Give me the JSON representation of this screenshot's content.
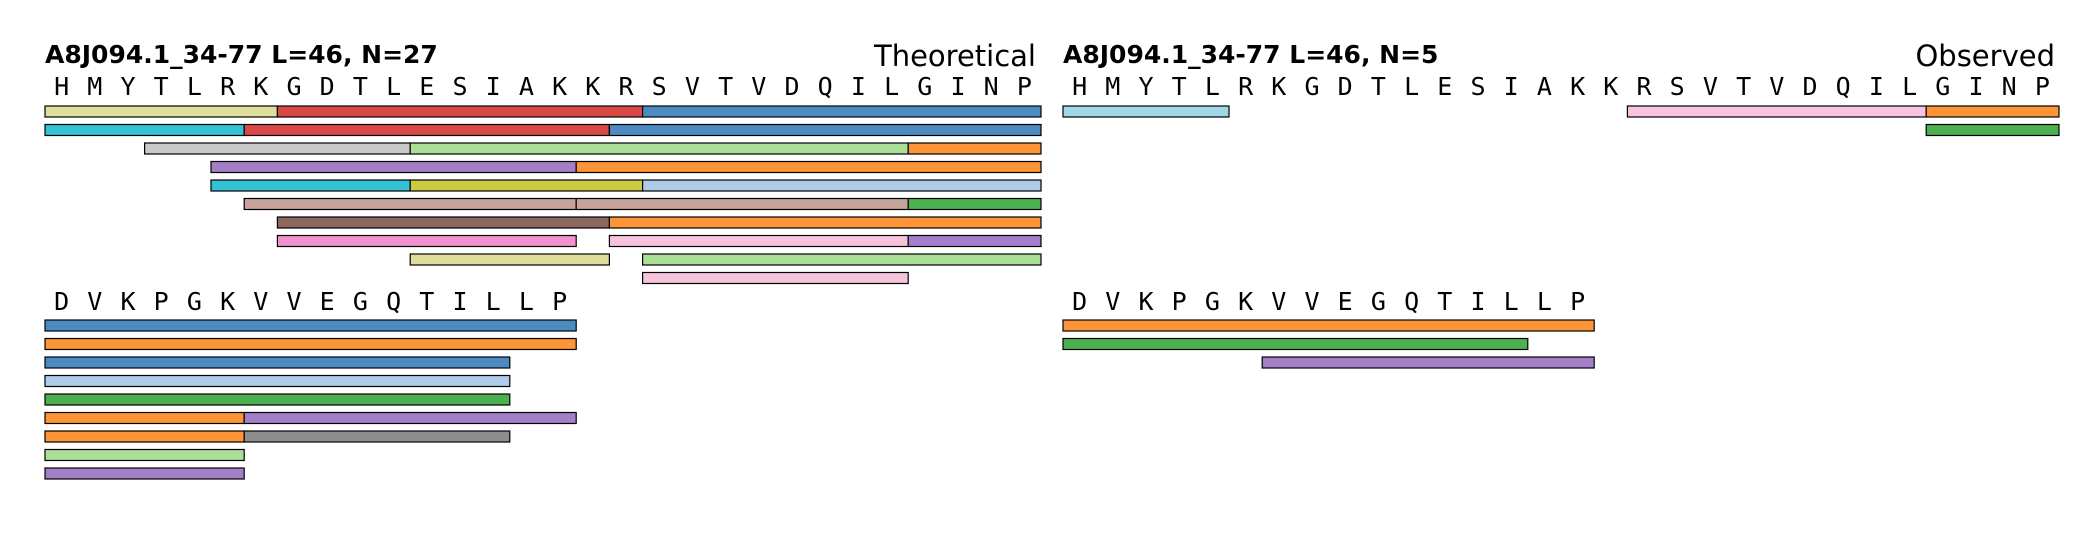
{
  "colors": {
    "blue": "#4b8bc2",
    "orange": "#fd9438",
    "green": "#4caf50",
    "red": "#d94747",
    "purple": "#a47fc9",
    "brown": "#8e6860",
    "pink": "#ef92cf",
    "gray": "#8e8e8e",
    "olive": "#cccb3f",
    "cyan": "#33c3d4",
    "light_blue": "#aecbe9",
    "light_orange": "#fdbe84",
    "light_green": "#a9df97",
    "light_red": "#fa9c9a",
    "light_purple": "#c6b1d6",
    "light_brown": "#c7a49b",
    "light_pink": "#f8c3dc",
    "light_gray": "#c9c9c9",
    "light_olive": "#dfdf9b",
    "light_cyan": "#9fd8e6"
  },
  "panels": [
    {
      "id": "theoretical",
      "header": "A8J094.1_34-77  L=46, N=27",
      "label": "Theoretical",
      "rows": [
        {
          "sequence": "HMYTLRKGDTLESIAKKRSVTVDQILGINP",
          "peptides": [
            {
              "start": 0,
              "end": 6,
              "color": "light_olive"
            },
            {
              "start": 7,
              "end": 17,
              "color": "red"
            },
            {
              "start": 18,
              "end": 29,
              "color": "blue"
            },
            {
              "start": 0,
              "end": 5,
              "color": "cyan"
            },
            {
              "start": 6,
              "end": 16,
              "color": "red"
            },
            {
              "start": 17,
              "end": 29,
              "color": "blue"
            },
            {
              "start": 3,
              "end": 10,
              "color": "light_gray"
            },
            {
              "start": 11,
              "end": 25,
              "color": "light_green"
            },
            {
              "start": 26,
              "end": 29,
              "color": "orange"
            },
            {
              "start": 5,
              "end": 15,
              "color": "purple"
            },
            {
              "start": 16,
              "end": 29,
              "color": "orange"
            },
            {
              "start": 5,
              "end": 10,
              "color": "cyan"
            },
            {
              "start": 11,
              "end": 17,
              "color": "olive"
            },
            {
              "start": 18,
              "end": 29,
              "color": "light_blue"
            },
            {
              "start": 6,
              "end": 15,
              "color": "light_brown"
            },
            {
              "start": 16,
              "end": 25,
              "color": "light_brown"
            },
            {
              "start": 26,
              "end": 29,
              "color": "green"
            },
            {
              "start": 7,
              "end": 16,
              "color": "brown"
            },
            {
              "start": 17,
              "end": 29,
              "color": "orange"
            },
            {
              "start": 7,
              "end": 15,
              "color": "pink"
            },
            {
              "start": 17,
              "end": 25,
              "color": "light_pink"
            },
            {
              "start": 26,
              "end": 29,
              "color": "purple"
            },
            {
              "start": 11,
              "end": 16,
              "color": "light_olive"
            },
            {
              "start": 18,
              "end": 29,
              "color": "light_green"
            },
            {
              "start": 18,
              "end": 25,
              "color": "light_pink"
            }
          ]
        },
        {
          "sequence": "DVKPGKVVEGQTILLP",
          "peptides": [
            {
              "start": 0,
              "end": 15,
              "color": "blue"
            },
            {
              "start": 0,
              "end": 15,
              "color": "orange"
            },
            {
              "start": 0,
              "end": 13,
              "color": "blue"
            },
            {
              "start": 0,
              "end": 13,
              "color": "light_blue"
            },
            {
              "start": 0,
              "end": 13,
              "color": "green"
            },
            {
              "start": 0,
              "end": 5,
              "color": "orange"
            },
            {
              "start": 6,
              "end": 15,
              "color": "purple"
            },
            {
              "start": 0,
              "end": 5,
              "color": "orange"
            },
            {
              "start": 6,
              "end": 13,
              "color": "gray"
            },
            {
              "start": 0,
              "end": 5,
              "color": "light_green"
            },
            {
              "start": 0,
              "end": 5,
              "color": "purple"
            }
          ]
        }
      ]
    },
    {
      "id": "observed",
      "header": "A8J094.1_34-77  L=46, N=5",
      "label": "Observed",
      "rows": [
        {
          "sequence": "HMYTLRKGDTLESIAKKRSVTVDQILGINP",
          "peptides": [
            {
              "start": 0,
              "end": 4,
              "color": "light_cyan"
            },
            {
              "start": 17,
              "end": 25,
              "color": "light_pink"
            },
            {
              "start": 26,
              "end": 29,
              "color": "orange"
            },
            {
              "start": 26,
              "end": 29,
              "color": "green"
            }
          ]
        },
        {
          "sequence": "DVKPGKVVEGQTILLP",
          "peptides": [
            {
              "start": 0,
              "end": 15,
              "color": "orange"
            },
            {
              "start": 0,
              "end": 13,
              "color": "green"
            },
            {
              "start": 6,
              "end": 15,
              "color": "purple"
            }
          ]
        }
      ]
    }
  ]
}
